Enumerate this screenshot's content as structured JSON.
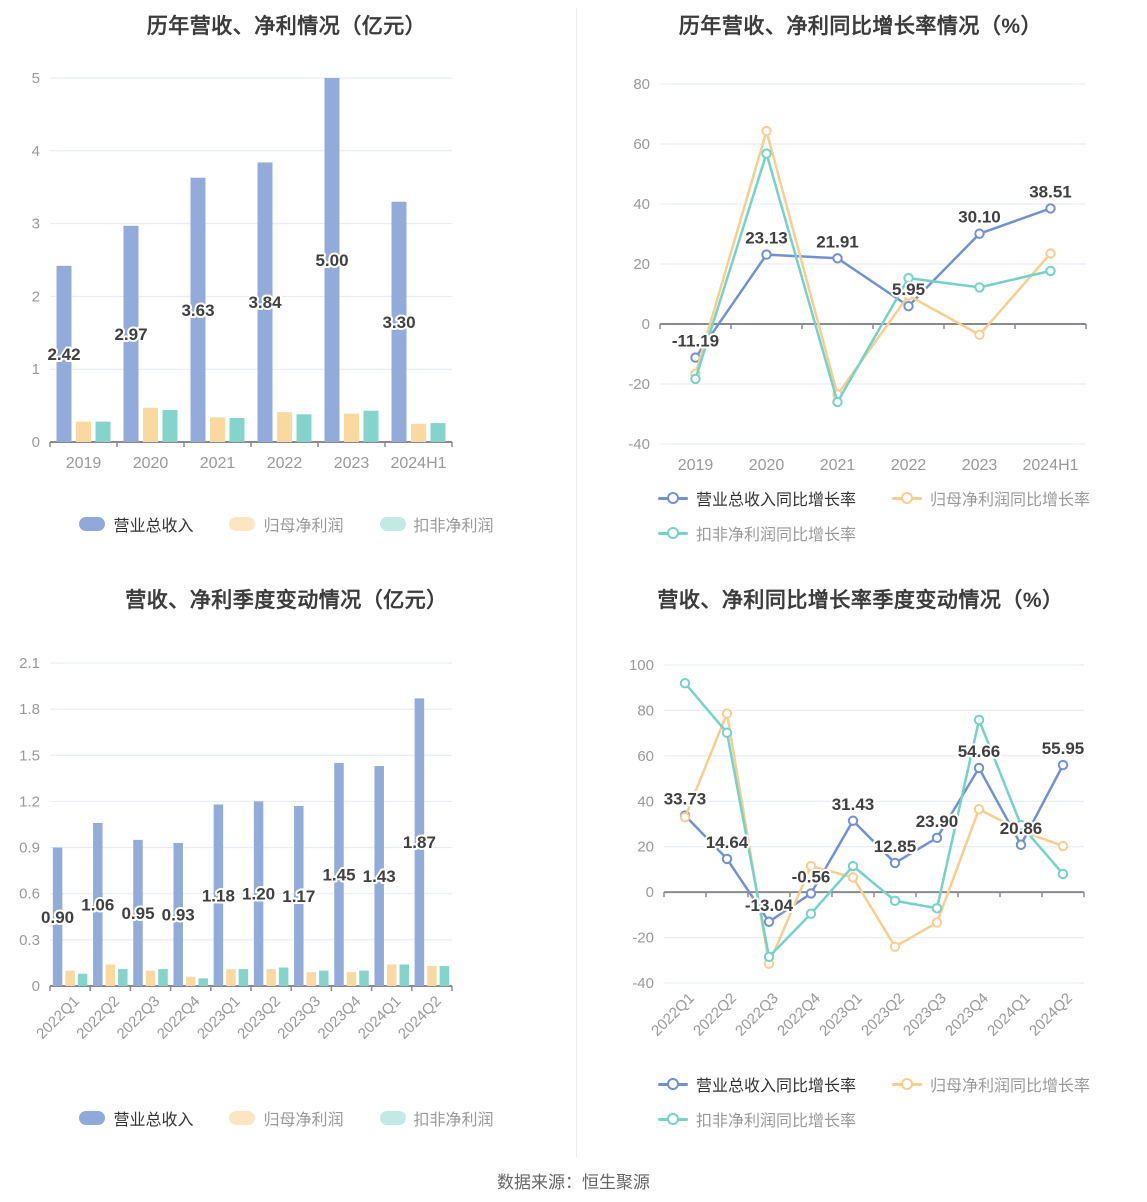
{
  "footer": {
    "source_text": "数据来源：恒生聚源"
  },
  "colors": {
    "grid": "#e3e8f4",
    "axis": "#898a90",
    "tick_label": "#999999",
    "title": "#3c3c3c",
    "value_label": "#404040",
    "label_halo": "#ffffff",
    "legend_active_text": "#333333",
    "legend_inactive_text": "#999999",
    "footer_text": "#666666",
    "divider": "#ececec",
    "bar_blue": "#92abd9",
    "bar_orange": "#fad9a1",
    "bar_teal": "#84d4cc",
    "line_blue": "#7291d2",
    "line_orange": "#f7cd90",
    "line_teal": "#74d2c8",
    "chip_blue": "#8fa9da",
    "chip_orange": "#fce6c1",
    "chip_teal": "#c3e9e5"
  },
  "chart_data": [
    {
      "type": "bar",
      "title": "历年营收、净利情况（亿元）",
      "categories": [
        "2019",
        "2020",
        "2021",
        "2022",
        "2023",
        "2024H1"
      ],
      "ylim": [
        0,
        5
      ],
      "ystep": 1,
      "grid_on": true,
      "legend_position": "bottom",
      "series": [
        {
          "name": "营业总收入",
          "color_key": "bar_blue",
          "chip_key": "chip_blue",
          "values": [
            2.42,
            2.97,
            3.63,
            3.84,
            5.0,
            3.3
          ],
          "labels": [
            "2.42",
            "2.97",
            "3.63",
            "3.84",
            "5.00",
            "3.30"
          ]
        },
        {
          "name": "归母净利润",
          "color_key": "bar_orange",
          "chip_key": "chip_orange",
          "values": [
            0.28,
            0.47,
            0.34,
            0.41,
            0.39,
            0.25
          ]
        },
        {
          "name": "扣非净利润",
          "color_key": "bar_teal",
          "chip_key": "chip_teal",
          "values": [
            0.28,
            0.44,
            0.33,
            0.38,
            0.43,
            0.26
          ]
        }
      ]
    },
    {
      "type": "line",
      "title": "历年营收、净利同比增长率情况（%）",
      "categories": [
        "2019",
        "2020",
        "2021",
        "2022",
        "2023",
        "2024H1"
      ],
      "ylim": [
        -40,
        80
      ],
      "ystep": 20,
      "grid_on": true,
      "legend_position": "bottom",
      "series": [
        {
          "name": "营业总收入同比增长率",
          "color_key": "line_blue",
          "values": [
            -11.19,
            23.13,
            21.91,
            5.95,
            30.1,
            38.51
          ],
          "labels": [
            "-11.19",
            "23.13",
            "21.91",
            "5.95",
            "30.10",
            "38.51"
          ]
        },
        {
          "name": "归母净利润同比增长率",
          "color_key": "line_orange",
          "values": [
            -16.6,
            64.3,
            -23.5,
            9.5,
            -3.6,
            23.5
          ]
        },
        {
          "name": "扣非净利润同比增长率",
          "color_key": "line_teal",
          "values": [
            -18.3,
            56.8,
            -26.0,
            15.3,
            12.2,
            17.7
          ]
        }
      ]
    },
    {
      "type": "bar",
      "title": "营收、净利季度变动情况（亿元）",
      "categories": [
        "2022Q1",
        "2022Q2",
        "2022Q3",
        "2022Q4",
        "2023Q1",
        "2023Q2",
        "2023Q3",
        "2023Q4",
        "2024Q1",
        "2024Q2"
      ],
      "ylim": [
        0,
        2.1
      ],
      "ystep": 0.3,
      "rotate_labels": true,
      "grid_on": true,
      "legend_position": "bottom",
      "series": [
        {
          "name": "营业总收入",
          "color_key": "bar_blue",
          "chip_key": "chip_blue",
          "values": [
            0.9,
            1.06,
            0.95,
            0.93,
            1.18,
            1.2,
            1.17,
            1.45,
            1.43,
            1.87
          ],
          "labels": [
            "0.90",
            "1.06",
            "0.95",
            "0.93",
            "1.18",
            "1.20",
            "1.17",
            "1.45",
            "1.43",
            "1.87"
          ]
        },
        {
          "name": "归母净利润",
          "color_key": "bar_orange",
          "chip_key": "chip_orange",
          "values": [
            0.1,
            0.14,
            0.1,
            0.06,
            0.11,
            0.11,
            0.09,
            0.09,
            0.14,
            0.13
          ]
        },
        {
          "name": "扣非净利润",
          "color_key": "bar_teal",
          "chip_key": "chip_teal",
          "values": [
            0.08,
            0.11,
            0.11,
            0.05,
            0.11,
            0.12,
            0.1,
            0.1,
            0.14,
            0.13
          ]
        }
      ]
    },
    {
      "type": "line",
      "title": "营收、净利同比增长率季度变动情况（%）",
      "categories": [
        "2022Q1",
        "2022Q2",
        "2022Q3",
        "2022Q4",
        "2023Q1",
        "2023Q2",
        "2023Q3",
        "2023Q4",
        "2024Q1",
        "2024Q2"
      ],
      "ylim": [
        -40,
        100
      ],
      "ystep": 20,
      "rotate_labels": true,
      "grid_on": true,
      "legend_position": "bottom",
      "series": [
        {
          "name": "营业总收入同比增长率",
          "color_key": "line_blue",
          "values": [
            33.73,
            14.64,
            -13.04,
            -0.56,
            31.43,
            12.85,
            23.9,
            54.66,
            20.86,
            55.95
          ],
          "labels": [
            "33.73",
            "14.64",
            "-13.04",
            "-0.56",
            "31.43",
            "12.85",
            "23.90",
            "54.66",
            "20.86",
            "55.95"
          ]
        },
        {
          "name": "归母净利润同比增长率",
          "color_key": "line_orange",
          "values": [
            33.0,
            78.6,
            -31.5,
            11.5,
            6.5,
            -24.0,
            -13.4,
            36.5,
            27.0,
            20.3
          ]
        },
        {
          "name": "扣非净利润同比增长率",
          "color_key": "line_teal",
          "values": [
            92.0,
            70.2,
            -28.5,
            -9.5,
            11.5,
            -3.8,
            -7.1,
            75.8,
            29.5,
            8.0
          ]
        }
      ]
    }
  ]
}
